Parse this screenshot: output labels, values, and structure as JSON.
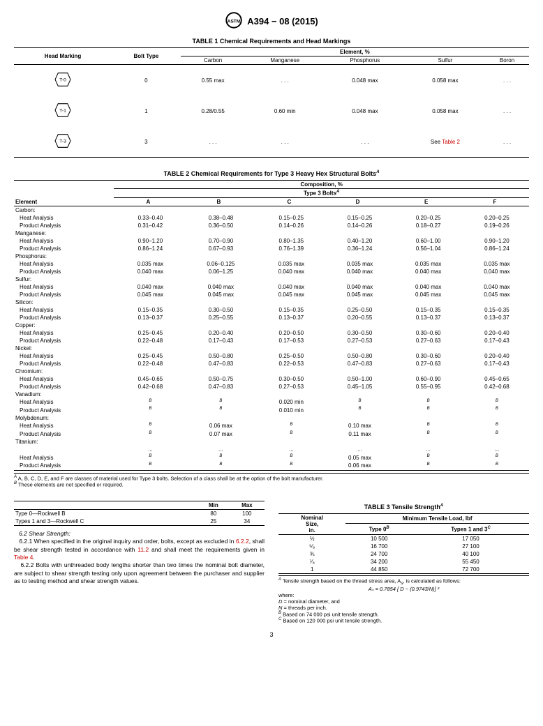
{
  "header": {
    "doc_id": "A394 − 08 (2015)"
  },
  "table1": {
    "title": "TABLE 1 Chemical Requirements and Head Markings",
    "col_head_marking": "Head Marking",
    "col_bolt_type": "Bolt Type",
    "col_element": "Element, %",
    "cols": [
      "Carbon",
      "Manganese",
      "Phosphorus",
      "Sulfur",
      "Boron"
    ],
    "rows": [
      {
        "mark": "T-0",
        "bolt": "0",
        "vals": [
          "0.55 max",
          ". . .",
          "0.048 max",
          "0.058 max",
          ". . ."
        ]
      },
      {
        "mark": "T-1",
        "bolt": "1",
        "vals": [
          "0.28/0.55",
          "0.60 min",
          "0.048 max",
          "0.058 max",
          ". . ."
        ]
      },
      {
        "mark": "T-3",
        "bolt": "3",
        "vals": [
          ". . .",
          ". . .",
          ". . .",
          "See Table 2",
          ". . ."
        ],
        "link_idx": 3
      }
    ]
  },
  "table2": {
    "title": "TABLE 2 Chemical Requirements for Type 3 Heavy Hex Structural Bolts",
    "col_element": "Element",
    "col_comp": "Composition, %",
    "col_type3": "Type 3 Bolts",
    "classes": [
      "A",
      "B",
      "C",
      "D",
      "E",
      "F"
    ],
    "groups": [
      {
        "name": "Carbon:",
        "rows": [
          {
            "label": "Heat Analysis",
            "vals": [
              "0.33–0.40",
              "0.38–0.48",
              "0.15–0.25",
              "0.15–0.25",
              "0.20–0.25",
              "0.20–0.25"
            ]
          },
          {
            "label": "Product Analysis",
            "vals": [
              "0.31–0.42",
              "0.36–0.50",
              "0.14–0.26",
              "0.14–0.26",
              "0.18–0.27",
              "0.19–0.26"
            ]
          }
        ]
      },
      {
        "name": "Manganese:",
        "rows": [
          {
            "label": "Heat Analysis",
            "vals": [
              "0.90–1.20",
              "0.70–0.90",
              "0.80–1.35",
              "0.40–1.20",
              "0.60–1.00",
              "0.90–1.20"
            ]
          },
          {
            "label": "Product Analysis",
            "vals": [
              "0.86–1.24",
              "0.67–0.93",
              "0.76–1.39",
              "0.36–1.24",
              "0.56–1.04",
              "0.86–1.24"
            ]
          }
        ]
      },
      {
        "name": "Phosphorus:",
        "rows": [
          {
            "label": "Heat Analysis",
            "vals": [
              "0.035 max",
              "0.06–0.125",
              "0.035 max",
              "0.035 max",
              "0.035 max",
              "0.035 max"
            ]
          },
          {
            "label": "Product Analysis",
            "vals": [
              "0.040 max",
              "0.06–1.25",
              "0.040 max",
              "0.040 max",
              "0.040 max",
              "0.040 max"
            ]
          }
        ]
      },
      {
        "name": "Sulfur:",
        "rows": [
          {
            "label": "Heat Analysis",
            "vals": [
              "0.040 max",
              "0.040 max",
              "0.040 max",
              "0.040 max",
              "0.040 max",
              "0.040 max"
            ]
          },
          {
            "label": "Product Analysis",
            "vals": [
              "0.045 max",
              "0.045 max",
              "0.045 max",
              "0.045 max",
              "0.045 max",
              "0.045 max"
            ]
          }
        ]
      },
      {
        "name": "Silicon:",
        "rows": [
          {
            "label": "Heat Analysis",
            "vals": [
              "0.15–0.35",
              "0.30–0.50",
              "0.15–0.35",
              "0.25–0.50",
              "0.15–0.35",
              "0.15–0.35"
            ]
          },
          {
            "label": "Product Analysis",
            "vals": [
              "0.13–0.37",
              "0.25–0.55",
              "0.13–0.37",
              "0.20–0.55",
              "0.13–0.37",
              "0.13–0.37"
            ]
          }
        ]
      },
      {
        "name": "Copper:",
        "rows": [
          {
            "label": "Heat Analysis",
            "vals": [
              "0.25–0.45",
              "0.20–0.40",
              "0.20–0.50",
              "0.30–0.50",
              "0.30–0.60",
              "0.20–0.40"
            ]
          },
          {
            "label": "Product Analysis",
            "vals": [
              "0.22–0.48",
              "0.17–0.43",
              "0.17–0.53",
              "0.27–0.53",
              "0.27–0.63",
              "0.17–0.43"
            ]
          }
        ]
      },
      {
        "name": "Nickel:",
        "rows": [
          {
            "label": "Heat Analysis",
            "vals": [
              "0.25–0.45",
              "0.50–0.80",
              "0.25–0.50",
              "0.50–0.80",
              "0.30–0.60",
              "0.20–0.40"
            ]
          },
          {
            "label": "Product Analysis",
            "vals": [
              "0.22–0.48",
              "0.47–0.83",
              "0.22–0.53",
              "0.47–0.83",
              "0.27–0.63",
              "0.17–0.43"
            ]
          }
        ]
      },
      {
        "name": "Chromium:",
        "rows": [
          {
            "label": "Heat Analysis",
            "vals": [
              "0.45–0.65",
              "0.50–0.75",
              "0.30–0.50",
              "0.50–1.00",
              "0.60–0.90",
              "0.45–0.65"
            ]
          },
          {
            "label": "Product Analysis",
            "vals": [
              "0.42–0.68",
              "0.47–0.83",
              "0.27–0.53",
              "0.45–1.05",
              "0.55–0.95",
              "0.42–0.68"
            ]
          }
        ]
      },
      {
        "name": "Vanadium:",
        "rows": [
          {
            "label": "Heat Analysis",
            "vals": [
              "B",
              "B",
              "0.020 min",
              "B",
              "B",
              "B"
            ],
            "sup": [
              0,
              1,
              3,
              4,
              5
            ]
          },
          {
            "label": "Product Analysis",
            "vals": [
              "B",
              "B",
              "0.010 min",
              "B",
              "B",
              "B"
            ],
            "sup": [
              0,
              1,
              3,
              4,
              5
            ]
          }
        ]
      },
      {
        "name": "Molybdenum:",
        "rows": [
          {
            "label": "Heat Analysis",
            "vals": [
              "B",
              "0.06 max",
              "B",
              "0.10 max",
              "B",
              "B"
            ],
            "sup": [
              0,
              2,
              4,
              5
            ]
          },
          {
            "label": "Product Analysis",
            "vals": [
              "B",
              "0.07 max",
              "B",
              "0.11 max",
              "B",
              "B"
            ],
            "sup": [
              0,
              2,
              4,
              5
            ]
          }
        ]
      },
      {
        "name": "Titanium:",
        "rows": [
          {
            "label": "",
            "vals": [
              "...",
              "...",
              "...",
              "...",
              "...",
              "..."
            ]
          },
          {
            "label": "Heat Analysis",
            "vals": [
              "B",
              "B",
              "B",
              "0.05 max",
              "B",
              "B"
            ],
            "sup": [
              0,
              1,
              2,
              4,
              5
            ]
          },
          {
            "label": "Product Analysis",
            "vals": [
              "B",
              "B",
              "B",
              "0.06 max",
              "B",
              "B"
            ],
            "sup": [
              0,
              1,
              2,
              4,
              5
            ]
          }
        ]
      }
    ],
    "footnote_a": "A, B, C, D, E, and F are classes of material used for Type 3 bolts. Selection of a class shall be at the option of the bolt manufacturer.",
    "footnote_b": "These elements are not specified or required."
  },
  "rockwell": {
    "col_min": "Min",
    "col_max": "Max",
    "rows": [
      {
        "label": "Type 0—Rockwell B",
        "min": "80",
        "max": "100"
      },
      {
        "label": "Types 1 and 3—Rockwell C",
        "min": "25",
        "max": "34"
      }
    ]
  },
  "body": {
    "s62_title": "6.2 Shear Strength:",
    "s621": "6.2.1 When specified in the original inquiry and order, bolts, except as excluded in ",
    "s621_link1": "6.2.2",
    "s621_mid": ", shall be shear strength tested in accordance with ",
    "s621_link2": "11.2",
    "s621_mid2": " and shall meet the requirements given in ",
    "s621_link3": "Table 4",
    "s621_end": ".",
    "s622": "6.2.2 Bolts with unthreaded body lengths shorter than two times the nominal bolt diameter, are subject to shear strength testing only upon agreement between the purchaser and supplier as to testing method and shear strength values."
  },
  "table3": {
    "title": "TABLE 3 Tensile Strength",
    "col_nom": "Nominal\nSize,\nin.",
    "col_min_load": "Minimum Tensile Load, lbf",
    "col_type0": "Type 0",
    "col_type13": "Types 1 and 3",
    "rows": [
      {
        "size": "½",
        "t0": "10 500",
        "t13": "17 050"
      },
      {
        "size": "⁵⁄₈",
        "t0": "16 700",
        "t13": "27 100"
      },
      {
        "size": "¾",
        "t0": "24 700",
        "t13": "40 100"
      },
      {
        "size": "⁷⁄₈",
        "t0": "34 200",
        "t13": "55 450"
      },
      {
        "size": "1",
        "t0": "44 850",
        "t13": "72 700"
      }
    ],
    "foot_a": "Tensile strength based on the thread stress area, A",
    "foot_a2": ", is calculated as follows:",
    "formula": "Aₛ = 0.7854 [ D − (0.9743/N)] ²",
    "where": "where:",
    "d_def": "D = nominal diameter, and",
    "n_def": "N = threads per inch.",
    "foot_b": "Based on 74 000 psi unit tensile strength.",
    "foot_c": "Based on 120 000 psi unit tensile strength."
  },
  "pagenum": "3"
}
